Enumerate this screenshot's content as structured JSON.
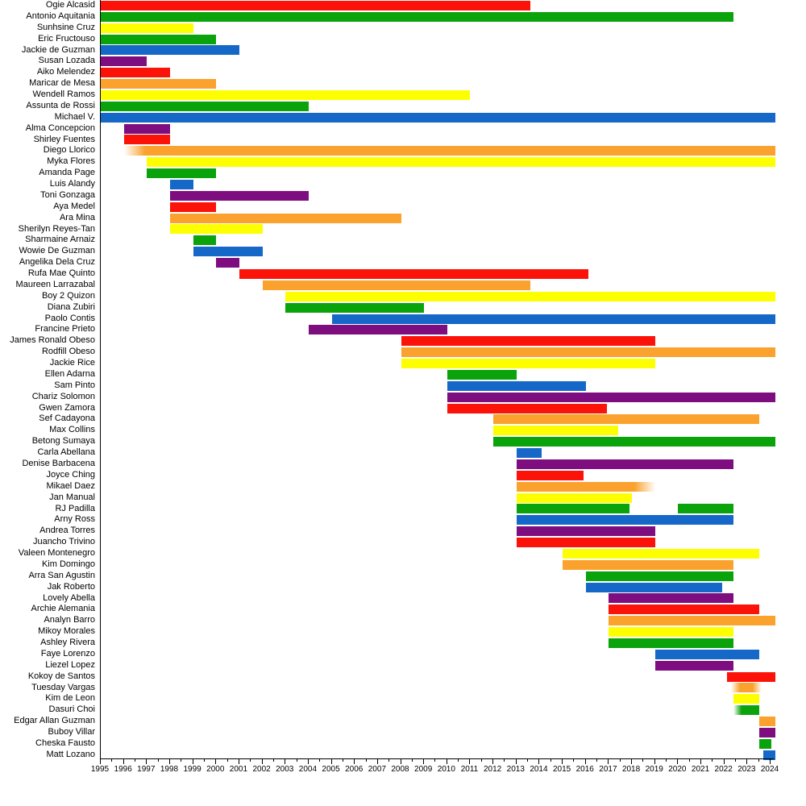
{
  "chart_data": {
    "type": "bar",
    "subtype": "gantt-timeline",
    "title": "",
    "xlabel": "",
    "ylabel": "",
    "x_axis": {
      "min": 1995,
      "max": 2024,
      "ticks": [
        1995,
        1996,
        1997,
        1998,
        1999,
        2000,
        2001,
        2002,
        2003,
        2004,
        2005,
        2006,
        2007,
        2008,
        2009,
        2010,
        2011,
        2012,
        2013,
        2014,
        2015,
        2016,
        2017,
        2018,
        2019,
        2020,
        2021,
        2022,
        2023,
        2024
      ]
    },
    "grid": false,
    "legend_position": "none",
    "palette": {
      "red": "#fb1209",
      "orange": "#faa22d",
      "yellow": "#fdff00",
      "green": "#0aa30b",
      "blue": "#1568c8",
      "purple": "#7e0d80"
    },
    "rows": [
      {
        "name": "Ogie Alcasid",
        "color": "red",
        "bars": [
          [
            1995,
            2013.6
          ]
        ]
      },
      {
        "name": "Antonio Aquitania",
        "color": "green",
        "bars": [
          [
            1995,
            2022.4
          ]
        ]
      },
      {
        "name": "Sunhsine Cruz",
        "color": "yellow",
        "bars": [
          [
            1995,
            1999
          ]
        ]
      },
      {
        "name": "Eric Fructouso",
        "color": "green",
        "bars": [
          [
            1995,
            2000
          ]
        ]
      },
      {
        "name": "Jackie de Guzman",
        "color": "blue",
        "bars": [
          [
            1995,
            2001
          ]
        ]
      },
      {
        "name": "Susan Lozada",
        "color": "purple",
        "bars": [
          [
            1995,
            1997
          ]
        ]
      },
      {
        "name": "Aiko Melendez",
        "color": "red",
        "bars": [
          [
            1995,
            1998
          ]
        ]
      },
      {
        "name": "Maricar de Mesa",
        "color": "orange",
        "bars": [
          [
            1995,
            2000
          ]
        ]
      },
      {
        "name": "Wendell Ramos",
        "color": "yellow",
        "bars": [
          [
            1995,
            2011
          ]
        ]
      },
      {
        "name": "Assunta de Rossi",
        "color": "green",
        "bars": [
          [
            1995,
            2004
          ]
        ]
      },
      {
        "name": "Michael V.",
        "color": "blue",
        "bars": [
          [
            1995,
            2024.2
          ]
        ]
      },
      {
        "name": "Alma Concepcion",
        "color": "purple",
        "bars": [
          [
            1996,
            1998
          ]
        ]
      },
      {
        "name": "Shirley Fuentes",
        "color": "red",
        "bars": [
          [
            1996,
            1998
          ]
        ]
      },
      {
        "name": "Diego Llorico",
        "color": "orange",
        "bars": [
          [
            1996,
            2024.2
          ]
        ],
        "fade": [
          "left"
        ]
      },
      {
        "name": "Myka Flores",
        "color": "yellow",
        "bars": [
          [
            1997,
            2024.2
          ]
        ]
      },
      {
        "name": "Amanda Page",
        "color": "green",
        "bars": [
          [
            1997,
            2000
          ]
        ]
      },
      {
        "name": "Luis Alandy",
        "color": "blue",
        "bars": [
          [
            1998,
            1999
          ]
        ]
      },
      {
        "name": "Toni Gonzaga",
        "color": "purple",
        "bars": [
          [
            1998,
            2004
          ]
        ]
      },
      {
        "name": "Aya Medel",
        "color": "red",
        "bars": [
          [
            1998,
            2000
          ]
        ]
      },
      {
        "name": "Ara Mina",
        "color": "orange",
        "bars": [
          [
            1998,
            2008
          ]
        ]
      },
      {
        "name": "Sherilyn Reyes-Tan",
        "color": "yellow",
        "bars": [
          [
            1998,
            2002
          ]
        ]
      },
      {
        "name": "Sharmaine Arnaiz",
        "color": "green",
        "bars": [
          [
            1999,
            2000
          ]
        ]
      },
      {
        "name": "Wowie De Guzman",
        "color": "blue",
        "bars": [
          [
            1999,
            2002
          ]
        ]
      },
      {
        "name": "Angelika Dela Cruz",
        "color": "purple",
        "bars": [
          [
            2000,
            2001
          ]
        ]
      },
      {
        "name": "Rufa Mae Quinto",
        "color": "red",
        "bars": [
          [
            2001,
            2016.1
          ]
        ]
      },
      {
        "name": "Maureen Larrazabal",
        "color": "orange",
        "bars": [
          [
            2002,
            2013.6
          ]
        ]
      },
      {
        "name": "Boy 2 Quizon",
        "color": "yellow",
        "bars": [
          [
            2003,
            2024.2
          ]
        ]
      },
      {
        "name": "Diana Zubiri",
        "color": "green",
        "bars": [
          [
            2003,
            2009
          ]
        ]
      },
      {
        "name": "Paolo Contis",
        "color": "blue",
        "bars": [
          [
            2005,
            2024.2
          ]
        ]
      },
      {
        "name": "Francine Prieto",
        "color": "purple",
        "bars": [
          [
            2004,
            2010
          ]
        ]
      },
      {
        "name": "James Ronald Obeso",
        "color": "red",
        "bars": [
          [
            2008,
            2019
          ]
        ]
      },
      {
        "name": "Rodfill Obeso",
        "color": "orange",
        "bars": [
          [
            2008,
            2024.2
          ]
        ]
      },
      {
        "name": "Jackie Rice",
        "color": "yellow",
        "bars": [
          [
            2008,
            2019
          ]
        ]
      },
      {
        "name": "Ellen Adarna",
        "color": "green",
        "bars": [
          [
            2010,
            2013
          ]
        ]
      },
      {
        "name": "Sam Pinto",
        "color": "blue",
        "bars": [
          [
            2010,
            2016
          ]
        ]
      },
      {
        "name": "Chariz Solomon",
        "color": "purple",
        "bars": [
          [
            2010,
            2024.2
          ]
        ]
      },
      {
        "name": "Gwen Zamora",
        "color": "red",
        "bars": [
          [
            2010,
            2016.9
          ]
        ]
      },
      {
        "name": "Sef Cadayona",
        "color": "orange",
        "bars": [
          [
            2012,
            2023.5
          ]
        ]
      },
      {
        "name": "Max Collins",
        "color": "yellow",
        "bars": [
          [
            2012,
            2017.4
          ]
        ]
      },
      {
        "name": "Betong Sumaya",
        "color": "green",
        "bars": [
          [
            2012,
            2024.2
          ]
        ]
      },
      {
        "name": "Carla Abellana",
        "color": "blue",
        "bars": [
          [
            2013,
            2014.1
          ]
        ]
      },
      {
        "name": "Denise Barbacena",
        "color": "purple",
        "bars": [
          [
            2013,
            2022.4
          ]
        ]
      },
      {
        "name": "Joyce Ching",
        "color": "red",
        "bars": [
          [
            2013,
            2015.9
          ]
        ]
      },
      {
        "name": "Mikael Daez",
        "color": "orange",
        "bars": [
          [
            2013,
            2019
          ]
        ],
        "fade": [
          "right"
        ]
      },
      {
        "name": "Jan Manual",
        "color": "yellow",
        "bars": [
          [
            2013,
            2018
          ]
        ]
      },
      {
        "name": "RJ Padilla",
        "color": "green",
        "bars": [
          [
            2013,
            2017.9
          ],
          [
            2020,
            2022.4
          ]
        ]
      },
      {
        "name": "Arny Ross",
        "color": "blue",
        "bars": [
          [
            2013,
            2022.4
          ]
        ]
      },
      {
        "name": "Andrea Torres",
        "color": "purple",
        "bars": [
          [
            2013,
            2019
          ]
        ]
      },
      {
        "name": "Juancho Trivino",
        "color": "red",
        "bars": [
          [
            2013,
            2019
          ]
        ]
      },
      {
        "name": "Valeen Montenegro",
        "color": "yellow",
        "bars": [
          [
            2015,
            2023.5
          ]
        ]
      },
      {
        "name": "Kim Domingo",
        "color": "orange",
        "bars": [
          [
            2015,
            2022.4
          ]
        ]
      },
      {
        "name": "Arra San Agustin",
        "color": "green",
        "bars": [
          [
            2016,
            2022.4
          ]
        ]
      },
      {
        "name": "Jak Roberto",
        "color": "blue",
        "bars": [
          [
            2016,
            2021.9
          ]
        ]
      },
      {
        "name": "Lovely Abella",
        "color": "purple",
        "bars": [
          [
            2017,
            2022.4
          ]
        ]
      },
      {
        "name": "Archie Alemania",
        "color": "red",
        "bars": [
          [
            2017,
            2023.5
          ]
        ]
      },
      {
        "name": "Analyn Barro",
        "color": "orange",
        "bars": [
          [
            2017,
            2024.2
          ]
        ]
      },
      {
        "name": "Mikoy Morales",
        "color": "yellow",
        "bars": [
          [
            2017,
            2022.4
          ]
        ]
      },
      {
        "name": "Ashley Rivera",
        "color": "green",
        "bars": [
          [
            2017,
            2022.4
          ]
        ]
      },
      {
        "name": "Faye Lorenzo",
        "color": "blue",
        "bars": [
          [
            2019,
            2023.5
          ]
        ]
      },
      {
        "name": "Liezel Lopez",
        "color": "purple",
        "bars": [
          [
            2019,
            2022.4
          ]
        ]
      },
      {
        "name": "Kokoy de Santos",
        "color": "red",
        "bars": [
          [
            2022.1,
            2024.2
          ]
        ]
      },
      {
        "name": "Tuesday Vargas",
        "color": "orange",
        "bars": [
          [
            2022.3,
            2023.6
          ]
        ],
        "fade": [
          "left",
          "right"
        ]
      },
      {
        "name": "Kim de Leon",
        "color": "yellow",
        "bars": [
          [
            2022.4,
            2023.5
          ]
        ]
      },
      {
        "name": "Dasuri Choi",
        "color": "green",
        "bars": [
          [
            2022.4,
            2023.5
          ]
        ],
        "fade": [
          "left"
        ]
      },
      {
        "name": "Edgar Allan Guzman",
        "color": "orange",
        "bars": [
          [
            2023.5,
            2024.2
          ]
        ]
      },
      {
        "name": "Buboy Villar",
        "color": "purple",
        "bars": [
          [
            2023.5,
            2024.2
          ]
        ]
      },
      {
        "name": "Cheska Fausto",
        "color": "green",
        "bars": [
          [
            2023.5,
            2024.05
          ]
        ]
      },
      {
        "name": "Matt Lozano",
        "color": "blue",
        "bars": [
          [
            2023.7,
            2024.2
          ]
        ]
      }
    ]
  }
}
